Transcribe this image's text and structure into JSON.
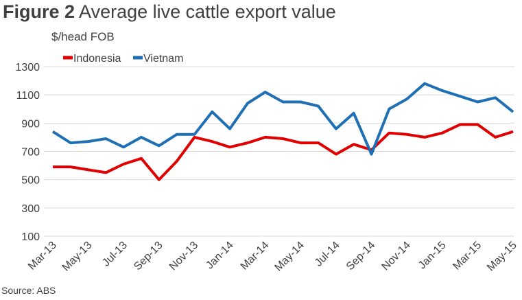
{
  "header": {
    "figure_label": "Figure 2",
    "title": "Average live cattle export value"
  },
  "source": "Source: ABS",
  "chart_data": {
    "type": "line",
    "title": "Average live cattle export value",
    "ylabel": "$/head FOB",
    "xlabel": "",
    "ylim": [
      100,
      1300
    ],
    "yticks": [
      100,
      300,
      500,
      700,
      900,
      1100,
      1300
    ],
    "grid": true,
    "legend_position": "top-left",
    "x": [
      "Mar-13",
      "Apr-13",
      "May-13",
      "Jun-13",
      "Jul-13",
      "Aug-13",
      "Sep-13",
      "Oct-13",
      "Nov-13",
      "Dec-13",
      "Jan-14",
      "Feb-14",
      "Mar-14",
      "Apr-14",
      "May-14",
      "Jun-14",
      "Jul-14",
      "Aug-14",
      "Sep-14",
      "Oct-14",
      "Nov-14",
      "Dec-14",
      "Jan-15",
      "Feb-15",
      "Mar-15",
      "Apr-15",
      "May-15"
    ],
    "x_tick_labels": [
      "Mar-13",
      "May-13",
      "Jul-13",
      "Sep-13",
      "Nov-13",
      "Jan-14",
      "Mar-14",
      "May-14",
      "Jul-14",
      "Sep-14",
      "Nov-14",
      "Jan-15",
      "Mar-15",
      "May-15"
    ],
    "series": [
      {
        "name": "Indonesia",
        "color": "#e00000",
        "values": [
          590,
          590,
          570,
          550,
          610,
          650,
          500,
          630,
          800,
          770,
          730,
          760,
          800,
          790,
          760,
          760,
          680,
          750,
          710,
          830,
          820,
          800,
          830,
          890,
          890,
          800,
          840
        ]
      },
      {
        "name": "Vietnam",
        "color": "#1f6fb4",
        "values": [
          840,
          760,
          770,
          790,
          730,
          800,
          740,
          820,
          820,
          980,
          860,
          1040,
          1120,
          1050,
          1050,
          1020,
          860,
          970,
          680,
          1000,
          1070,
          1180,
          1130,
          1090,
          1050,
          1080,
          980
        ]
      }
    ]
  }
}
